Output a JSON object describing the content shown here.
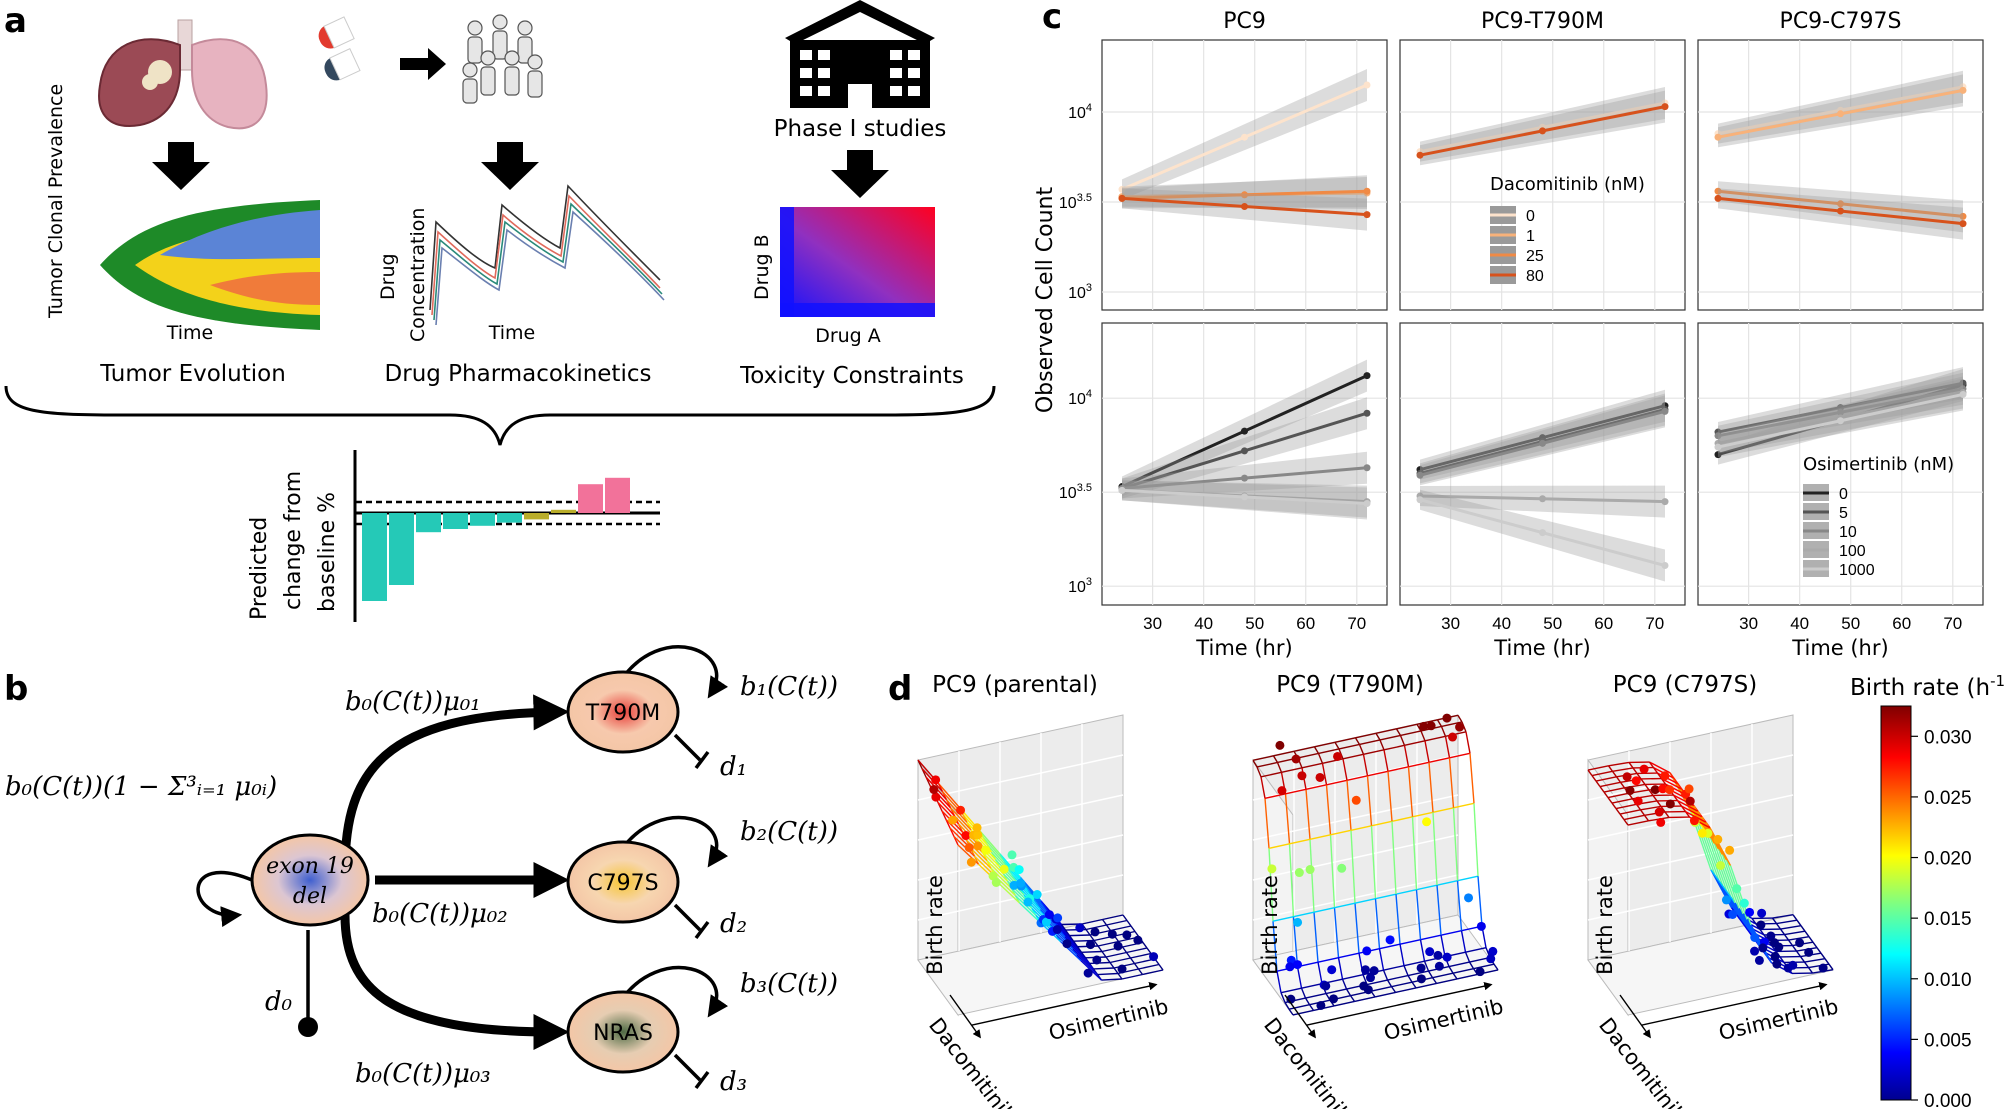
{
  "panel_labels": {
    "a": "a",
    "b": "b",
    "c": "c",
    "d": "d"
  },
  "panel_a": {
    "tumor_evolution": {
      "ylabel": "Tumor Clonal Prevalence",
      "xlabel": "Time",
      "caption": "Tumor Evolution"
    },
    "pharmacokinetics": {
      "ylabel": "Drug Concentration",
      "xlabel": "Time",
      "caption": "Drug Pharmacokinetics"
    },
    "toxicity": {
      "header": "Phase I studies",
      "ylabel": "Drug B",
      "xlabel": "Drug A",
      "caption": "Toxicity Constraints"
    },
    "waterfall": {
      "ylabel": "Predicted change from baseline %",
      "values": [
        -55,
        -45,
        -12,
        -10,
        -8,
        -6,
        -4,
        2,
        18,
        22
      ]
    }
  },
  "panel_b": {
    "nodes": {
      "exon19": "exon 19 del",
      "t790m": "T790M",
      "c797s": "C797S",
      "nras": "NRAS"
    },
    "labels": {
      "self_parent": "b₀(C(t))(1 − Σ³ᵢ₌₁ μ₀ᵢ)",
      "b1": "b₁(C(t))",
      "b2": "b₂(C(t))",
      "b3": "b₃(C(t))",
      "mu01": "b₀(C(t))μ₀₁",
      "mu02": "b₀(C(t))μ₀₂",
      "mu03": "b₀(C(t))μ₀₃",
      "d0": "d₀",
      "d1": "d₁",
      "d2": "d₂",
      "d3": "d₃"
    }
  },
  "panel_c": {
    "ylabel": "Observed Cell Count",
    "xlabel": "Time (hr)",
    "columns": [
      "PC9",
      "PC9-T790M",
      "PC9-C797S"
    ],
    "xticks": [
      "30",
      "40",
      "50",
      "60",
      "70"
    ],
    "yticks": [
      "10^3",
      "10^3.5",
      "10^4"
    ],
    "legend_top": {
      "title": "Dacomitinib (nM)",
      "items": [
        "0",
        "1",
        "25",
        "80"
      ],
      "colors": [
        "#fde3cc",
        "#f8b27a",
        "#f08a45",
        "#d7521c"
      ]
    },
    "legend_bottom": {
      "title": "Osimertinib (nM)",
      "items": [
        "0",
        "5",
        "10",
        "100",
        "1000"
      ],
      "colors": [
        "#222222",
        "#555555",
        "#888888",
        "#aaaaaa",
        "#cccccc"
      ]
    },
    "chart_data": {
      "type": "line",
      "x_range": [
        24,
        72
      ],
      "y_log10_range": [
        2.9,
        4.4
      ],
      "panels": [
        {
          "row": "dacomitinib",
          "column": "PC9",
          "series": [
            {
              "name": "0",
              "y_log10": [
                3.57,
                4.15
              ]
            },
            {
              "name": "1",
              "y_log10": [
                3.53,
                3.55
              ]
            },
            {
              "name": "25",
              "y_log10": [
                3.52,
                3.56
              ]
            },
            {
              "name": "80",
              "y_log10": [
                3.52,
                3.43
              ]
            }
          ]
        },
        {
          "row": "dacomitinib",
          "column": "PC9-T790M",
          "series": [
            {
              "name": "0",
              "y_log10": [
                3.78,
                4.05
              ]
            },
            {
              "name": "80",
              "y_log10": [
                3.76,
                4.03
              ]
            }
          ]
        },
        {
          "row": "dacomitinib",
          "column": "PC9-C797S",
          "series": [
            {
              "name": "0",
              "y_log10": [
                3.88,
                4.14
              ]
            },
            {
              "name": "1",
              "y_log10": [
                3.86,
                4.12
              ]
            },
            {
              "name": "25",
              "y_log10": [
                3.56,
                3.42
              ]
            },
            {
              "name": "80",
              "y_log10": [
                3.52,
                3.38
              ]
            }
          ]
        },
        {
          "row": "osimertinib",
          "column": "PC9",
          "series": [
            {
              "name": "0",
              "y_log10": [
                3.53,
                4.12
              ]
            },
            {
              "name": "5",
              "y_log10": [
                3.52,
                3.92
              ]
            },
            {
              "name": "10",
              "y_log10": [
                3.52,
                3.63
              ]
            },
            {
              "name": "100",
              "y_log10": [
                3.51,
                3.45
              ]
            },
            {
              "name": "1000",
              "y_log10": [
                3.51,
                3.44
              ]
            }
          ]
        },
        {
          "row": "osimertinib",
          "column": "PC9-T790M",
          "series": [
            {
              "name": "0",
              "y_log10": [
                3.62,
                3.96
              ]
            },
            {
              "name": "5",
              "y_log10": [
                3.6,
                3.94
              ]
            },
            {
              "name": "10",
              "y_log10": [
                3.59,
                3.93
              ]
            },
            {
              "name": "100",
              "y_log10": [
                3.48,
                3.45
              ]
            },
            {
              "name": "1000",
              "y_log10": [
                3.46,
                3.11
              ]
            }
          ]
        },
        {
          "row": "osimertinib",
          "column": "PC9-C797S",
          "series": [
            {
              "name": "0",
              "y_log10": [
                3.7,
                4.07
              ]
            },
            {
              "name": "5",
              "y_log10": [
                3.82,
                4.08
              ]
            },
            {
              "name": "10",
              "y_log10": [
                3.8,
                4.05
              ]
            },
            {
              "name": "100",
              "y_log10": [
                3.76,
                4.03
              ]
            },
            {
              "name": "1000",
              "y_log10": [
                3.74,
                4.02
              ]
            }
          ]
        }
      ]
    }
  },
  "panel_d": {
    "titles": [
      "PC9 (parental)",
      "PC9 (T790M)",
      "PC9 (C797S)"
    ],
    "zlabel": "Birth rate",
    "xlabel": "Osimertinib",
    "ylabel": "Dacomitinib",
    "colorbar": {
      "title": "Birth rate (h",
      "title_sup": "-1",
      "title_end": ")",
      "ticks": [
        "0.000",
        "0.005",
        "0.010",
        "0.015",
        "0.020",
        "0.025",
        "0.030"
      ]
    }
  }
}
